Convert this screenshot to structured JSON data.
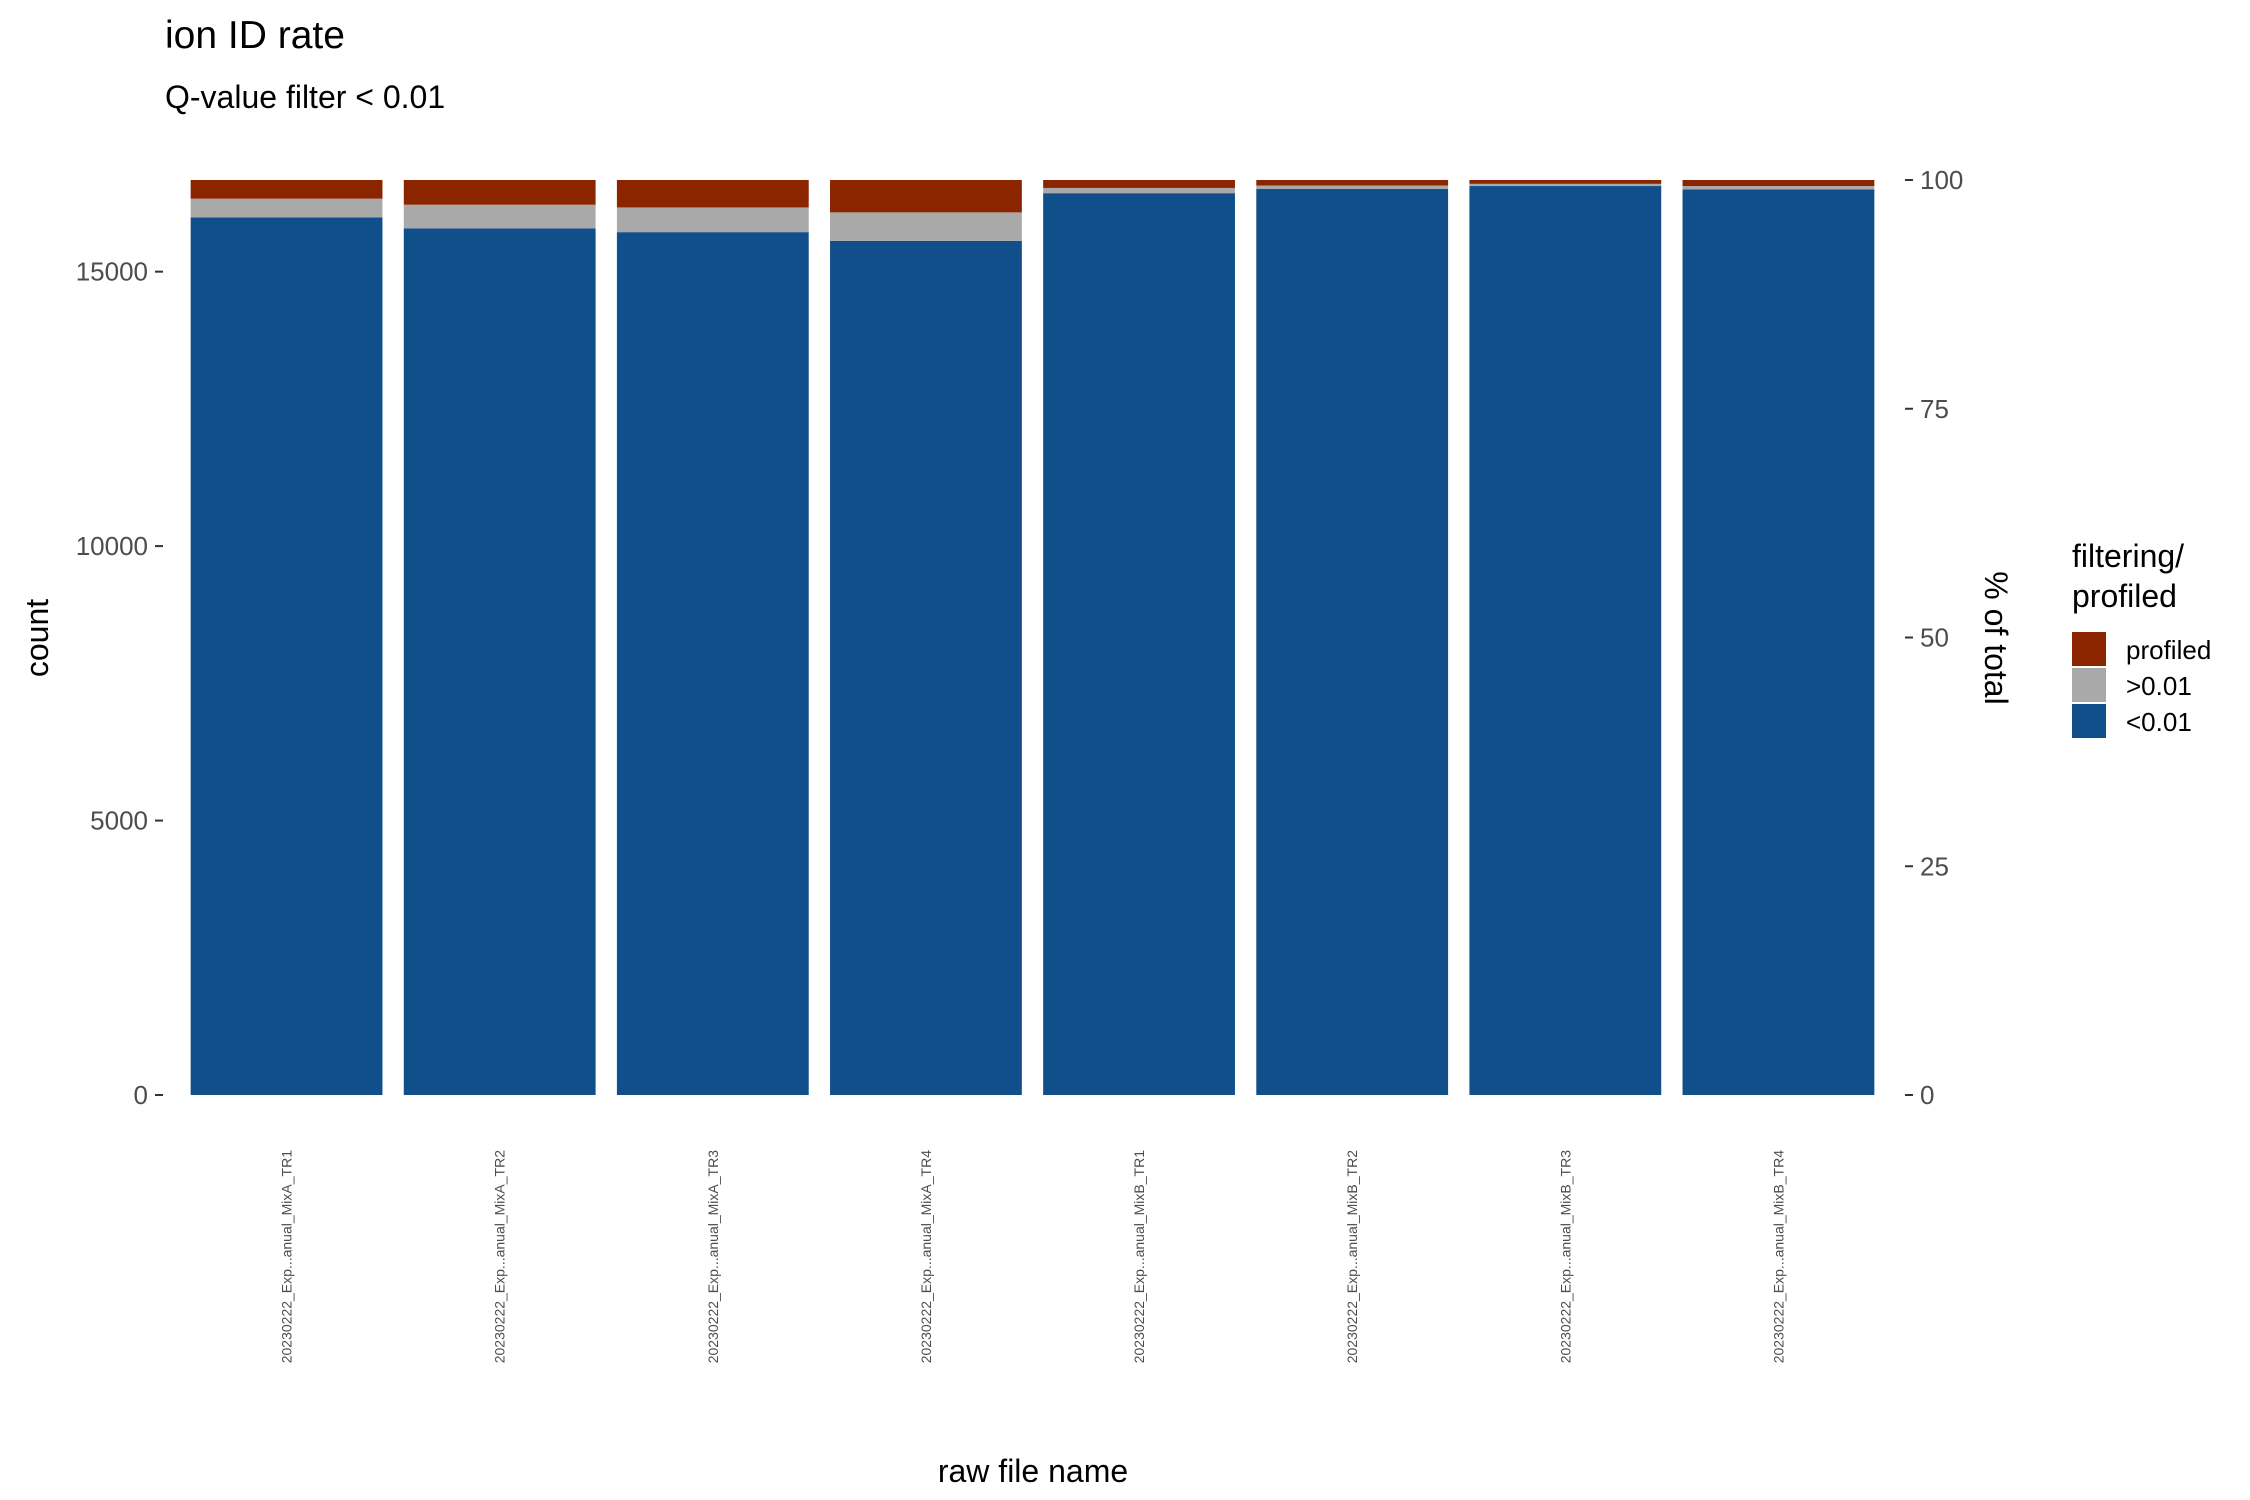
{
  "chart_data": {
    "type": "bar",
    "stacked": true,
    "title": "ion ID rate",
    "subtitle": "Q-value filter < 0.01",
    "xlabel": "raw file name",
    "ylabel": "count",
    "ylabel_right": "% of total",
    "ylim": [
      0,
      16670
    ],
    "yticks": [
      0,
      5000,
      10000,
      15000
    ],
    "yticks_right": [
      0,
      25,
      50,
      75,
      100
    ],
    "grid": false,
    "legend_position": "right",
    "legend_title": "filtering/\nprofiled",
    "categories": [
      "20230222_Exp...anual_MixA_TR1",
      "20230222_Exp...anual_MixA_TR2",
      "20230222_Exp...anual_MixA_TR3",
      "20230222_Exp...anual_MixA_TR4",
      "20230222_Exp...anual_MixB_TR1",
      "20230222_Exp...anual_MixB_TR2",
      "20230222_Exp...anual_MixB_TR3",
      "20230222_Exp...anual_MixB_TR4"
    ],
    "series": [
      {
        "name": "<0.01",
        "color": "#114F8B",
        "values": [
          15990,
          15790,
          15720,
          15560,
          16430,
          16510,
          16560,
          16500
        ]
      },
      {
        "name": ">0.01",
        "color": "#A9A9A9",
        "values": [
          340,
          430,
          450,
          520,
          95,
          60,
          40,
          60
        ]
      },
      {
        "name": "profiled",
        "color": "#8B2500",
        "values": [
          340,
          450,
          500,
          590,
          145,
          100,
          70,
          110
        ]
      }
    ]
  }
}
